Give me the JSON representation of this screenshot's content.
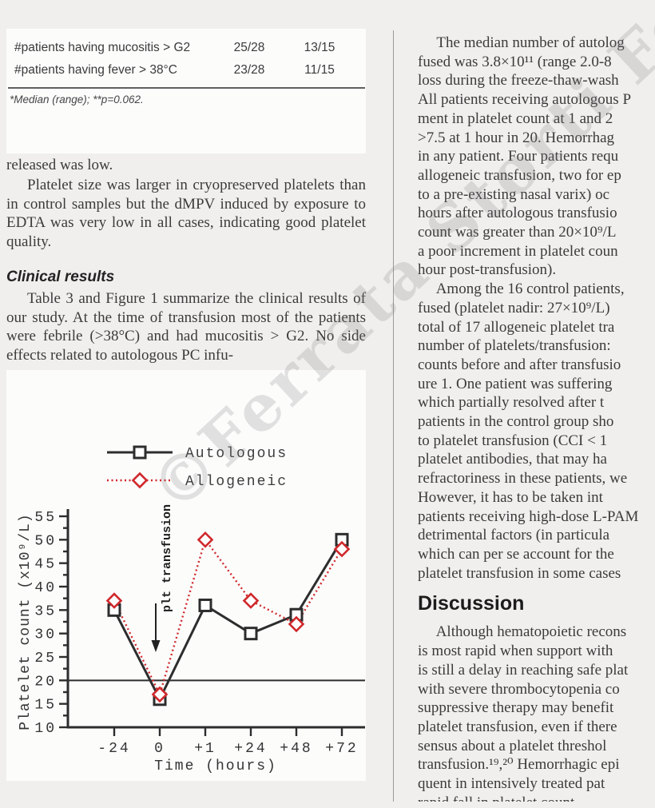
{
  "page": {
    "background": "#f0efed",
    "divider_color": "#9a9a98"
  },
  "watermark": {
    "text": "©Ferrata Storti Foundation"
  },
  "table": {
    "rows": [
      {
        "label": "#patients having mucositis > G2",
        "col1": "25/28",
        "col2": "13/15"
      },
      {
        "label": "#patients having fever > 38°C",
        "col1": "23/28",
        "col2": "11/15"
      }
    ],
    "footnote": "*Median (range); **p=0.062."
  },
  "left_column": {
    "para_fragment": "released was low.",
    "para2": "Platelet size was larger in cryopreserved platelets than in control samples but the dMPV induced by exposure to EDTA was very low in all cases, indicating good platelet quality.",
    "heading": "Clinical results",
    "para3": "Table 3 and Figure 1 summarize the clinical results of our study. At the time of transfusion most of the patients were febrile (>38°C) and had mucositis > G2. No side effects related to autologous PC infu-"
  },
  "right_column": {
    "heading": "Discussion",
    "para1_lines": [
      "     The median number of autolog",
      "fused was 3.8×10¹¹ (range 2.0-8",
      "loss during the freeze-thaw-wash",
      "All patients receiving autologous P",
      "ment in platelet count at 1 and 2",
      ">7.5 at 1 hour in 20. Hemorrhag",
      "in any patient. Four patients requ",
      "allogeneic transfusion, two for ep",
      "to a pre-existing nasal varix) oc",
      "hours after autologous transfusio",
      "count was greater than 20×10⁹/L",
      "a poor increment in platelet coun",
      "hour post-transfusion)."
    ],
    "para2_lines": [
      "     Among the 16 control patients,",
      "fused (platelet nadir: 27×10⁹/L)",
      "total of 17 allogeneic platelet tra",
      "number of platelets/transfusion:",
      "counts before and after transfusio",
      "ure 1. One patient was suffering",
      "which partially resolved after t",
      "patients in the control group sho",
      "to platelet transfusion (CCI < 1",
      "platelet antibodies, that may ha",
      "refractoriness in these patients, we",
      "However, it has to be taken int",
      "patients receiving high-dose L-PAM",
      "detrimental factors (in particula",
      "which can per se account for the",
      "platelet transfusion in some cases"
    ],
    "para3_lines": [
      "     Although hematopoietic recons",
      "is most rapid when support with",
      "is still a delay in reaching safe plat",
      "with severe thrombocytopenia co",
      "suppressive therapy may benefit",
      "platelet transfusion, even if there",
      "sensus about a platelet threshol",
      "transfusion.¹⁹,²⁰ Hemorrhagic epi",
      "quent in intensively treated pat",
      "rapid fall in platelet count"
    ]
  },
  "chart_data": {
    "type": "line",
    "categories": [
      "-24",
      "0",
      "+1",
      "+24",
      "+48",
      "+72"
    ],
    "series": [
      {
        "name": "Autologous",
        "values": [
          35,
          16,
          36,
          30,
          34,
          50
        ],
        "color": "#2d2d2d",
        "marker": "square",
        "line_style": "solid"
      },
      {
        "name": "Allogeneic",
        "values": [
          37,
          17,
          50,
          37,
          32,
          48
        ],
        "color": "#d0282b",
        "marker": "diamond",
        "line_style": "dotted"
      }
    ],
    "xlabel": "Time (hours)",
    "ylabel": "Platelet count (x10⁹/L)",
    "ylim": [
      10,
      55
    ],
    "ytick_step": 5,
    "reference_line": 20,
    "annotation": "plt transfusion",
    "legend_position": "top-center",
    "grid": false
  }
}
